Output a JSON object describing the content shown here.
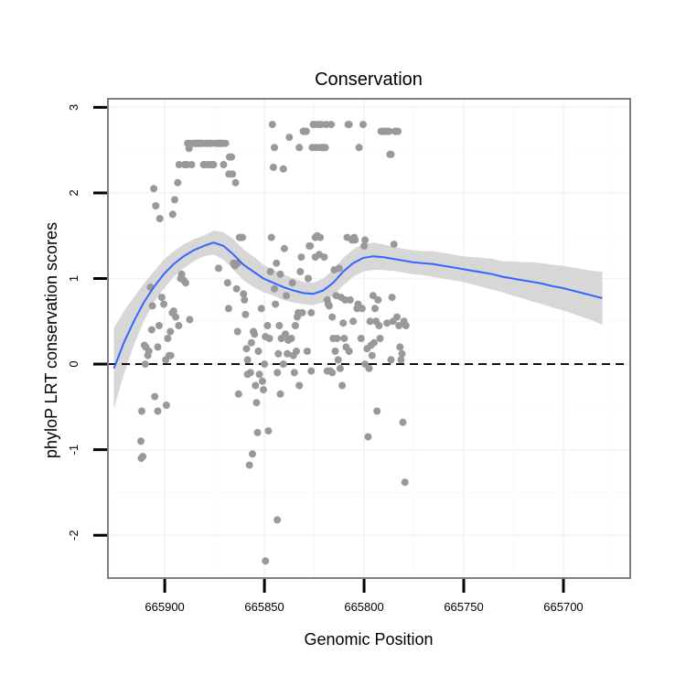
{
  "chart_data": {
    "type": "scatter",
    "title": "Conservation",
    "xlabel": "Genomic Position",
    "ylabel": "phyloP LRT conservation scores",
    "xlim": [
      665928.5,
      665666.5
    ],
    "x_reversed": true,
    "ylim": [
      -2.5,
      3.1
    ],
    "x_ticks": [
      665900,
      665850,
      665800,
      665750,
      665700
    ],
    "y_ticks": [
      -2,
      -1,
      0,
      1,
      2,
      3
    ],
    "reference_line": {
      "y": 0,
      "style": "dashed",
      "color": "#000000"
    },
    "grid": true,
    "colors": {
      "points": "#999999",
      "smooth_line": "#3366ff",
      "confidence_band": "#d3d3d3",
      "panel_border": "#7f7f7f"
    },
    "points": [
      [
        665912.0,
        -0.9
      ],
      [
        665911.8,
        -1.1
      ],
      [
        665911.0,
        -1.08
      ],
      [
        665911.5,
        -0.55
      ],
      [
        665910.2,
        0.22
      ],
      [
        665909.8,
        0.0
      ],
      [
        665909.5,
        0.2
      ],
      [
        665908.5,
        0.1
      ],
      [
        665908.0,
        0.15
      ],
      [
        665907.2,
        0.9
      ],
      [
        665906.5,
        0.4
      ],
      [
        665906.2,
        0.68
      ],
      [
        665905.5,
        2.05
      ],
      [
        665905.0,
        -0.38
      ],
      [
        665904.5,
        1.85
      ],
      [
        665903.5,
        -0.55
      ],
      [
        665903.5,
        0.2
      ],
      [
        665902.8,
        0.45
      ],
      [
        665902.5,
        1.7
      ],
      [
        665901.5,
        0.78
      ],
      [
        665900.5,
        0.7
      ],
      [
        665899.5,
        0.05
      ],
      [
        665899.2,
        -0.48
      ],
      [
        665898.5,
        0.3
      ],
      [
        665897.8,
        0.1
      ],
      [
        665897.2,
        0.38
      ],
      [
        665897.0,
        0.1
      ],
      [
        665896.2,
        0.6
      ],
      [
        665896.0,
        1.75
      ],
      [
        665895.5,
        0.62
      ],
      [
        665895.0,
        1.92
      ],
      [
        665894.5,
        0.55
      ],
      [
        665893.5,
        2.12
      ],
      [
        665893.0,
        0.45
      ],
      [
        665892.8,
        2.33
      ],
      [
        665892.0,
        1.0
      ],
      [
        665891.5,
        1.05
      ],
      [
        665890.5,
        0.98
      ],
      [
        665890.0,
        2.33
      ],
      [
        665889.5,
        0.95
      ],
      [
        665889.0,
        2.33
      ],
      [
        665888.5,
        2.58
      ],
      [
        665887.8,
        2.52
      ],
      [
        665887.5,
        0.52
      ],
      [
        665887.0,
        2.58
      ],
      [
        665886.5,
        2.33
      ],
      [
        665885.5,
        2.58
      ],
      [
        665885.0,
        2.58
      ],
      [
        665884.5,
        2.58
      ],
      [
        665884.0,
        2.58
      ],
      [
        665883.5,
        2.58
      ],
      [
        665883.0,
        2.58
      ],
      [
        665882.5,
        2.58
      ],
      [
        665882.0,
        2.58
      ],
      [
        665881.5,
        2.58
      ],
      [
        665881.0,
        2.58
      ],
      [
        665880.5,
        2.33
      ],
      [
        665880.0,
        2.33
      ],
      [
        665879.5,
        2.58
      ],
      [
        665879.0,
        2.58
      ],
      [
        665878.5,
        2.33
      ],
      [
        665878.0,
        2.58
      ],
      [
        665877.5,
        2.58
      ],
      [
        665877.0,
        2.33
      ],
      [
        665876.5,
        2.58
      ],
      [
        665876.0,
        2.33
      ],
      [
        665875.5,
        2.33
      ],
      [
        665874.5,
        2.58
      ],
      [
        665873.5,
        2.58
      ],
      [
        665873.0,
        1.12
      ],
      [
        665872.5,
        2.58
      ],
      [
        665872.0,
        2.58
      ],
      [
        665871.5,
        2.58
      ],
      [
        665871.0,
        2.58
      ],
      [
        665870.5,
        2.33
      ],
      [
        665869.5,
        2.58
      ],
      [
        665868.5,
        0.95
      ],
      [
        665868.0,
        0.65
      ],
      [
        665867.8,
        2.22
      ],
      [
        665867.5,
        2.42
      ],
      [
        665866.5,
        2.42
      ],
      [
        665866.0,
        2.22
      ],
      [
        665865.5,
        1.18
      ],
      [
        665864.8,
        1.15
      ],
      [
        665864.5,
        2.12
      ],
      [
        665864.0,
        0.88
      ],
      [
        665863.5,
        1.18
      ],
      [
        665863.5,
        0.38
      ],
      [
        665863.0,
        -0.35
      ],
      [
        665862.5,
        1.48
      ],
      [
        665862.0,
        1.48
      ],
      [
        665861.0,
        1.48
      ],
      [
        665860.5,
        0.82
      ],
      [
        665860.0,
        0.75
      ],
      [
        665859.5,
        0.58
      ],
      [
        665859.0,
        0.18
      ],
      [
        665858.5,
        -0.12
      ],
      [
        665858.5,
        0.05
      ],
      [
        665857.5,
        -1.18
      ],
      [
        665857.0,
        -0.1
      ],
      [
        665856.5,
        0.25
      ],
      [
        665856.0,
        -1.05
      ],
      [
        665855.5,
        0.38
      ],
      [
        665855.0,
        0.35
      ],
      [
        665854.5,
        -0.25
      ],
      [
        665854.0,
        -0.45
      ],
      [
        665853.5,
        -0.8
      ],
      [
        665853.0,
        0.15
      ],
      [
        665852.5,
        -0.12
      ],
      [
        665851.5,
        0.65
      ],
      [
        665851.0,
        -0.2
      ],
      [
        665850.5,
        -0.3
      ],
      [
        665850.0,
        0.0
      ],
      [
        665849.5,
        0.32
      ],
      [
        665849.5,
        -2.3
      ],
      [
        665848.5,
        0.45
      ],
      [
        665848.0,
        -0.78
      ],
      [
        665847.5,
        0.3
      ],
      [
        665847.0,
        1.08
      ],
      [
        665846.5,
        1.48
      ],
      [
        665846.0,
        2.8
      ],
      [
        665845.5,
        2.3
      ],
      [
        665845.0,
        2.53
      ],
      [
        665845.0,
        0.88
      ],
      [
        665844.5,
        0.7
      ],
      [
        665844.0,
        1.18
      ],
      [
        665843.5,
        -0.1
      ],
      [
        665843.5,
        -1.82
      ],
      [
        665843.0,
        0.12
      ],
      [
        665842.5,
        0.45
      ],
      [
        665842.0,
        -0.35
      ],
      [
        665842.0,
        1.05
      ],
      [
        665841.5,
        0.3
      ],
      [
        665840.5,
        2.28
      ],
      [
        665840.5,
        0.0
      ],
      [
        665840.0,
        1.35
      ],
      [
        665839.5,
        0.35
      ],
      [
        665839.0,
        0.8
      ],
      [
        665838.5,
        0.12
      ],
      [
        665838.0,
        0.28
      ],
      [
        665837.5,
        2.65
      ],
      [
        665836.5,
        0.3
      ],
      [
        665836.0,
        0.95
      ],
      [
        665835.5,
        0.1
      ],
      [
        665835.0,
        -0.1
      ],
      [
        665834.5,
        0.45
      ],
      [
        665834.0,
        0.15
      ],
      [
        665833.5,
        0.55
      ],
      [
        665833.0,
        0.6
      ],
      [
        665832.5,
        2.53
      ],
      [
        665832.5,
        -0.25
      ],
      [
        665832.0,
        1.08
      ],
      [
        665831.5,
        1.25
      ],
      [
        665831.0,
        0.6
      ],
      [
        665830.5,
        2.72
      ],
      [
        665830.0,
        2.72
      ],
      [
        665829.5,
        2.72
      ],
      [
        665829.0,
        2.72
      ],
      [
        665828.5,
        0.15
      ],
      [
        665828.0,
        1.0
      ],
      [
        665827.5,
        1.38
      ],
      [
        665827.0,
        1.38
      ],
      [
        665826.5,
        -0.08
      ],
      [
        665826.5,
        0.6
      ],
      [
        665826.0,
        2.53
      ],
      [
        665825.5,
        2.8
      ],
      [
        665825.0,
        2.8
      ],
      [
        665824.5,
        1.25
      ],
      [
        665824.5,
        1.48
      ],
      [
        665824.0,
        2.53
      ],
      [
        665823.5,
        1.5
      ],
      [
        665823.0,
        2.8
      ],
      [
        665822.5,
        1.28
      ],
      [
        665822.0,
        1.48
      ],
      [
        665822.0,
        2.53
      ],
      [
        665821.5,
        2.8
      ],
      [
        665821.0,
        2.53
      ],
      [
        665820.5,
        2.53
      ],
      [
        665820.0,
        1.25
      ],
      [
        665819.5,
        2.53
      ],
      [
        665819.0,
        2.8
      ],
      [
        665818.5,
        0.75
      ],
      [
        665818.5,
        -0.08
      ],
      [
        665818.0,
        0.7
      ],
      [
        665817.5,
        0.68
      ],
      [
        665817.0,
        -0.08
      ],
      [
        665816.5,
        2.8
      ],
      [
        665816.0,
        0.55
      ],
      [
        665816.0,
        -0.1
      ],
      [
        665815.5,
        0.3
      ],
      [
        665815.0,
        1.1
      ],
      [
        665814.5,
        0.15
      ],
      [
        665814.0,
        0.8
      ],
      [
        665813.5,
        0.3
      ],
      [
        665813.0,
        0.05
      ],
      [
        665812.5,
        1.12
      ],
      [
        665812.0,
        -0.05
      ],
      [
        665811.5,
        0.78
      ],
      [
        665811.0,
        -0.25
      ],
      [
        665810.5,
        0.48
      ],
      [
        665810.0,
        0.3
      ],
      [
        665809.5,
        0.75
      ],
      [
        665809.0,
        0.2
      ],
      [
        665808.5,
        1.48
      ],
      [
        665808.0,
        2.8
      ],
      [
        665807.5,
        2.8
      ],
      [
        665807.5,
        0.15
      ],
      [
        665807.0,
        0.75
      ],
      [
        665806.0,
        1.45
      ],
      [
        665805.5,
        0.5
      ],
      [
        665805.0,
        1.48
      ],
      [
        665804.5,
        1.45
      ],
      [
        665803.5,
        0.65
      ],
      [
        665803.0,
        0.7
      ],
      [
        665802.5,
        2.53
      ],
      [
        665801.5,
        0.3
      ],
      [
        665801.0,
        0.65
      ],
      [
        665800.5,
        2.8
      ],
      [
        665800.0,
        1.38
      ],
      [
        665799.5,
        1.45
      ],
      [
        665799.5,
        0.0
      ],
      [
        665798.5,
        0.18
      ],
      [
        665798.0,
        -0.85
      ],
      [
        665797.5,
        -0.05
      ],
      [
        665797.0,
        0.5
      ],
      [
        665796.5,
        0.22
      ],
      [
        665796.0,
        0.1
      ],
      [
        665795.5,
        0.8
      ],
      [
        665795.0,
        0.25
      ],
      [
        665794.5,
        0.65
      ],
      [
        665794.0,
        0.5
      ],
      [
        665793.5,
        -0.55
      ],
      [
        665793.0,
        0.75
      ],
      [
        665792.5,
        0.45
      ],
      [
        665792.0,
        0.3
      ],
      [
        665791.5,
        2.72
      ],
      [
        665791.0,
        2.72
      ],
      [
        665790.5,
        2.72
      ],
      [
        665790.0,
        2.72
      ],
      [
        665789.5,
        2.72
      ],
      [
        665789.0,
        2.72
      ],
      [
        665788.5,
        0.48
      ],
      [
        665788.0,
        2.72
      ],
      [
        665787.5,
        2.72
      ],
      [
        665787.0,
        2.45
      ],
      [
        665786.5,
        2.45
      ],
      [
        665786.5,
        0.05
      ],
      [
        665786.0,
        0.78
      ],
      [
        665785.5,
        0.5
      ],
      [
        665785.0,
        1.4
      ],
      [
        665784.5,
        2.72
      ],
      [
        665784.0,
        2.72
      ],
      [
        665783.5,
        0.55
      ],
      [
        665783.0,
        2.72
      ],
      [
        665782.5,
        0.45
      ],
      [
        665782.0,
        0.2
      ],
      [
        665781.5,
        0.05
      ],
      [
        665781.0,
        0.12
      ],
      [
        665780.5,
        -0.68
      ],
      [
        665780.0,
        0.5
      ],
      [
        665779.5,
        -1.38
      ],
      [
        665779.0,
        0.45
      ]
    ],
    "smooth": {
      "x": [
        665925.5,
        665920.5,
        665915.5,
        665910.5,
        665905.5,
        665900.5,
        665895.5,
        665890.5,
        665885.5,
        665880.5,
        665875.5,
        665870.5,
        665865.5,
        665860.5,
        665855.5,
        665850.5,
        665845.5,
        665840.5,
        665835.5,
        665830.5,
        665825.5,
        665820.5,
        665815.5,
        665810.5,
        665805.5,
        665800.5,
        665795.5,
        665790.5,
        665785.5,
        665780.5,
        665775.5,
        665770.5,
        665765.5,
        665760.5,
        665755.5,
        665750.5,
        665745.5,
        665740.5,
        665735.5,
        665730.5,
        665725.5,
        665720.5,
        665715.5,
        665710.5,
        665705.5,
        665700.5,
        665695.5,
        665690.5,
        665685.5,
        665680.5
      ],
      "y": [
        -0.05,
        0.25,
        0.5,
        0.72,
        0.9,
        1.05,
        1.17,
        1.26,
        1.33,
        1.38,
        1.42,
        1.38,
        1.28,
        1.16,
        1.08,
        1.0,
        0.95,
        0.9,
        0.86,
        0.83,
        0.82,
        0.86,
        0.95,
        1.08,
        1.18,
        1.24,
        1.26,
        1.25,
        1.23,
        1.21,
        1.19,
        1.18,
        1.17,
        1.15,
        1.13,
        1.11,
        1.09,
        1.07,
        1.05,
        1.02,
        1.0,
        0.98,
        0.96,
        0.94,
        0.91,
        0.89,
        0.86,
        0.83,
        0.8,
        0.77
      ],
      "lower": [
        -0.52,
        -0.12,
        0.22,
        0.5,
        0.72,
        0.88,
        1.02,
        1.12,
        1.2,
        1.26,
        1.28,
        1.22,
        1.1,
        0.98,
        0.9,
        0.84,
        0.8,
        0.75,
        0.72,
        0.7,
        0.69,
        0.72,
        0.8,
        0.92,
        1.02,
        1.08,
        1.1,
        1.1,
        1.09,
        1.07,
        1.05,
        1.04,
        1.02,
        1.0,
        0.98,
        0.96,
        0.93,
        0.9,
        0.87,
        0.84,
        0.8,
        0.77,
        0.73,
        0.7,
        0.66,
        0.63,
        0.59,
        0.55,
        0.51,
        0.46
      ],
      "upper": [
        0.42,
        0.62,
        0.78,
        0.94,
        1.08,
        1.22,
        1.32,
        1.4,
        1.46,
        1.5,
        1.56,
        1.54,
        1.46,
        1.34,
        1.26,
        1.16,
        1.1,
        1.05,
        1.0,
        0.96,
        0.95,
        1.0,
        1.1,
        1.24,
        1.34,
        1.4,
        1.42,
        1.4,
        1.37,
        1.35,
        1.33,
        1.32,
        1.32,
        1.3,
        1.28,
        1.26,
        1.25,
        1.24,
        1.23,
        1.2,
        1.2,
        1.19,
        1.19,
        1.18,
        1.16,
        1.15,
        1.13,
        1.11,
        1.09,
        1.08
      ]
    }
  }
}
